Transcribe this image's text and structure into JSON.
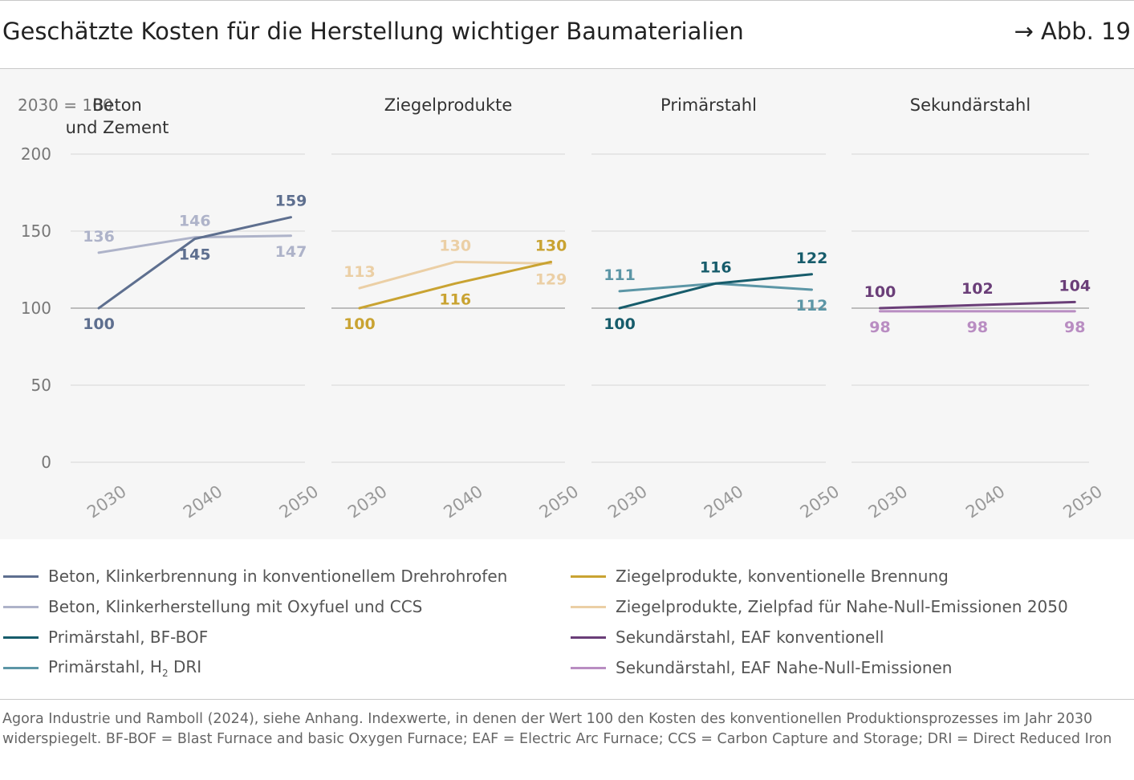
{
  "header": {
    "title": "Geschätzte Kosten für die Herstellung wichtiger Baumaterialien",
    "figure_ref": "→ Abb. 19"
  },
  "chart_data": {
    "type": "line",
    "index_label": "2030 = 100",
    "x": [
      "2030",
      "2040",
      "2050"
    ],
    "ylim": [
      0,
      200
    ],
    "yticks": [
      0,
      50,
      100,
      150,
      200
    ],
    "grid": true,
    "panels": [
      {
        "title_lines": [
          "Beton",
          "und Zement"
        ],
        "series": [
          {
            "name": "Beton, Klinkerbrennung in konventionellem Drehrohrofen",
            "values": [
              100,
              145,
              159
            ],
            "color": "#5e6f8f",
            "label_positions": [
              "below",
              "below",
              "above"
            ]
          },
          {
            "name": "Beton, Klinkerherstellung mit Oxyfuel und CCS",
            "values": [
              136,
              146,
              147
            ],
            "color": "#aeb3c9",
            "label_positions": [
              "above",
              "above",
              "below"
            ]
          }
        ]
      },
      {
        "title_lines": [
          "Ziegelprodukte"
        ],
        "series": [
          {
            "name": "Ziegelprodukte, konventionelle Brennung",
            "values": [
              100,
              116,
              130
            ],
            "color": "#c9a332",
            "label_positions": [
              "below",
              "below",
              "above"
            ]
          },
          {
            "name": "Ziegelprodukte, Zielpfad für Nahe-Null-Emissionen 2050",
            "values": [
              113,
              130,
              129
            ],
            "color": "#ebcfa5",
            "label_positions": [
              "above",
              "above",
              "below"
            ]
          }
        ]
      },
      {
        "title_lines": [
          "Primärstahl"
        ],
        "series": [
          {
            "name": "Primärstahl, BF-BOF",
            "values": [
              100,
              116,
              122
            ],
            "color": "#175c6b",
            "label_positions": [
              "below",
              "above",
              "above"
            ]
          },
          {
            "name": "Primärstahl, H2 DRI",
            "values": [
              111,
              116,
              112
            ],
            "color": "#5c96a6",
            "label_positions": [
              "above",
              "none",
              "below"
            ]
          }
        ]
      },
      {
        "title_lines": [
          "Sekundärstahl"
        ],
        "series": [
          {
            "name": "Sekundärstahl, EAF konventionell",
            "values": [
              100,
              102,
              104
            ],
            "color": "#6a3e78",
            "label_positions": [
              "above",
              "above",
              "above"
            ]
          },
          {
            "name": "Sekundärstahl, EAF Nahe-Null-Emissionen",
            "values": [
              98,
              98,
              98
            ],
            "color": "#b98dc2",
            "label_positions": [
              "below",
              "below",
              "below"
            ]
          }
        ]
      }
    ]
  },
  "legend": {
    "items": [
      {
        "label": "Beton, Klinkerbrennung in konventionellem Drehrohrofen",
        "color": "#5e6f8f"
      },
      {
        "label": "Beton, Klinkerherstellung mit Oxyfuel und CCS",
        "color": "#aeb3c9"
      },
      {
        "label": "Primärstahl, BF-BOF",
        "color": "#175c6b"
      },
      {
        "label_prefix": "Primärstahl, H",
        "label_sub": "2",
        "label_suffix": " DRI",
        "color": "#5c96a6"
      },
      {
        "label": "Ziegelprodukte, konventionelle Brennung",
        "color": "#c9a332"
      },
      {
        "label": "Ziegelprodukte, Zielpfad für Nahe-Null-Emissionen 2050",
        "color": "#ebcfa5"
      },
      {
        "label": "Sekundärstahl, EAF konventionell",
        "color": "#6a3e78"
      },
      {
        "label": "Sekundärstahl, EAF Nahe-Null-Emissionen",
        "color": "#b98dc2"
      }
    ]
  },
  "source": {
    "text": "Agora Industrie und Ramboll (2024), siehe Anhang. Indexwerte, in denen der Wert 100 den Kosten des konventionellen Produktionsprozesses im Jahr 2030 widerspiegelt. BF-BOF = Blast Furnace and basic Oxygen Furnace; EAF = Electric Arc Furnace; CCS = Carbon Capture and Storage; DRI = Direct Reduced Iron"
  }
}
